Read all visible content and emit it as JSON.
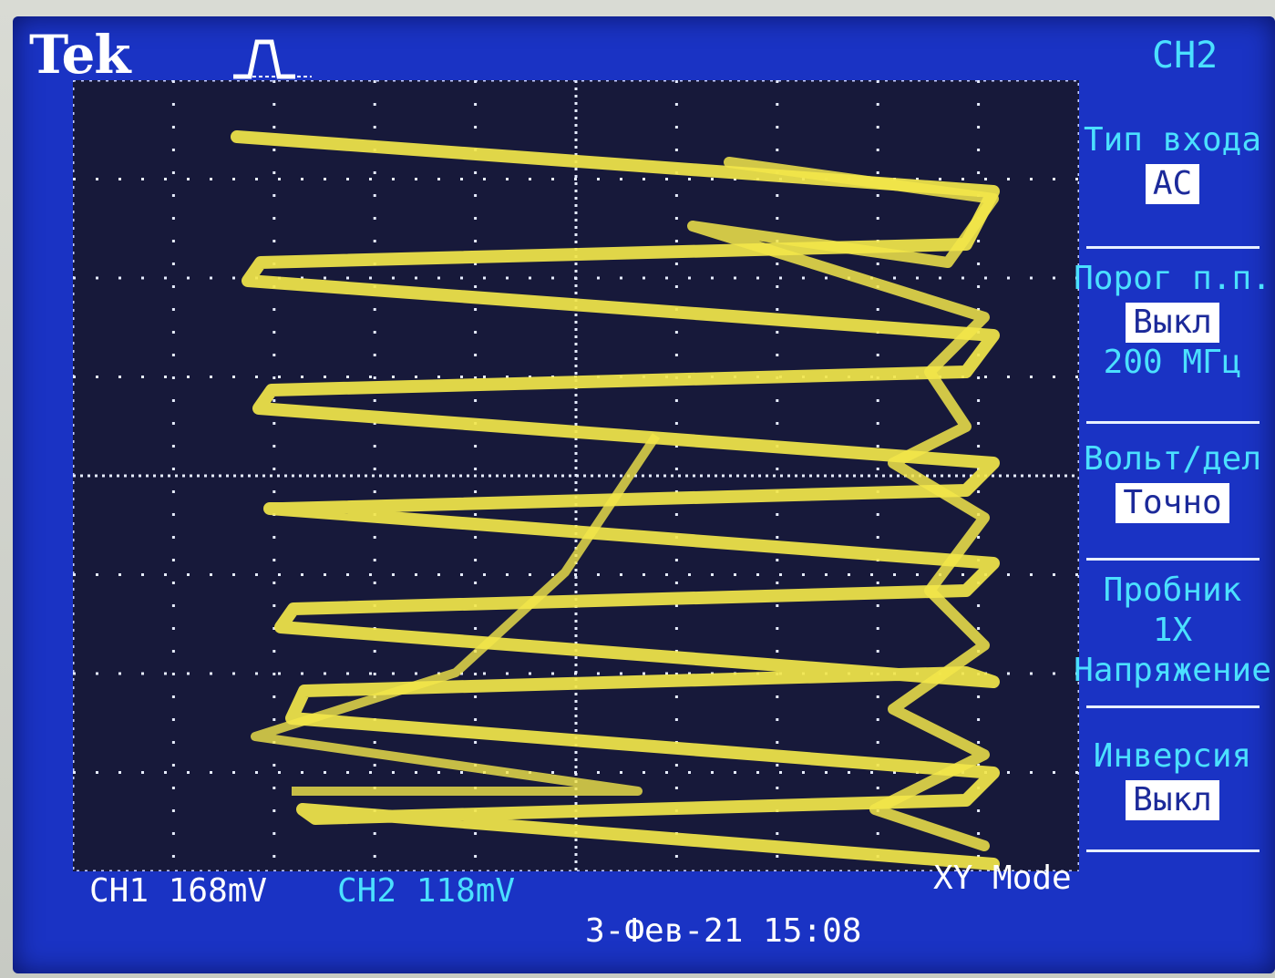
{
  "header": {
    "brand": "Tek",
    "channel_menu_title": "CH2"
  },
  "side_menu": {
    "items": [
      {
        "label": "Тип входа",
        "value": "AC"
      },
      {
        "label": "Порог п.п.",
        "value": "Выкл",
        "extra": "200 МГц"
      },
      {
        "label": "Вольт/дел",
        "value": "Точно"
      },
      {
        "label": "Пробник",
        "value": "1X",
        "extra": "Напряжение"
      },
      {
        "label": "Инверсия",
        "value": "Выкл"
      }
    ]
  },
  "status": {
    "ch1_label": "CH1",
    "ch1_scale": "168mV",
    "ch2_label": "CH2",
    "ch2_scale": "118mV",
    "mode": "XY Mode",
    "datetime": "3-Фев-21 15:08"
  },
  "colors": {
    "screen_bg": "#1a33c4",
    "graticule_bg": "#17193a",
    "trace": "#f2e64a",
    "accent_cyan": "#4be0ff"
  }
}
